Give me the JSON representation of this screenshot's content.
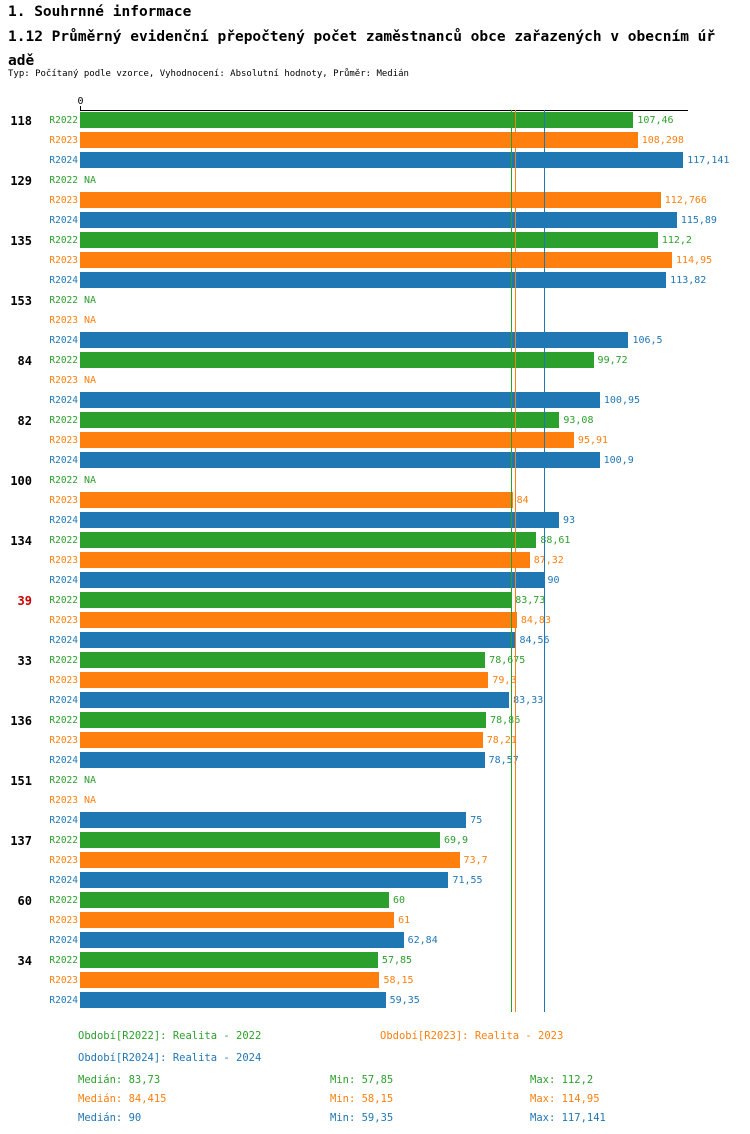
{
  "header": {
    "title": "1. Souhrnné informace",
    "subtitle": "1.12 Průměrný evidenční přepočtený počet zaměstnanců obce zařazených v obecním úřadě",
    "meta": "Typ: Počítaný podle vzorce, Vyhodnocení: Absolutní hodnoty, Průměr: Medián"
  },
  "chart_data": {
    "type": "bar",
    "orientation": "horizontal",
    "xlim": [
      0,
      122
    ],
    "axis": {
      "origin_label": "0"
    },
    "series": [
      "R2022",
      "R2023",
      "R2024"
    ],
    "colors": {
      "R2022": "#2ca02c",
      "R2023": "#ff7f0e",
      "R2024": "#1f77b4"
    },
    "highlight_color": "#cc0000",
    "groups": [
      {
        "label": "118",
        "values": [
          107.46,
          108.298,
          117.141
        ],
        "displays": [
          "107,46",
          "108,298",
          "117,141"
        ]
      },
      {
        "label": "129",
        "values": [
          null,
          112.766,
          115.89
        ],
        "displays": [
          "NA",
          "112,766",
          "115,89"
        ]
      },
      {
        "label": "135",
        "values": [
          112.2,
          114.95,
          113.82
        ],
        "displays": [
          "112,2",
          "114,95",
          "113,82"
        ]
      },
      {
        "label": "153",
        "values": [
          null,
          null,
          106.5
        ],
        "displays": [
          "NA",
          "NA",
          "106,5"
        ]
      },
      {
        "label": "84",
        "values": [
          99.72,
          null,
          100.95
        ],
        "displays": [
          "99,72",
          "NA",
          "100,95"
        ]
      },
      {
        "label": "82",
        "values": [
          93.08,
          95.91,
          100.9
        ],
        "displays": [
          "93,08",
          "95,91",
          "100,9"
        ]
      },
      {
        "label": "100",
        "values": [
          null,
          84,
          93
        ],
        "displays": [
          "NA",
          "84",
          "93"
        ]
      },
      {
        "label": "134",
        "values": [
          88.61,
          87.32,
          90
        ],
        "displays": [
          "88,61",
          "87,32",
          "90"
        ]
      },
      {
        "label": "39",
        "highlight": true,
        "values": [
          83.73,
          84.83,
          84.56
        ],
        "displays": [
          "83,73",
          "84,83",
          "84,56"
        ]
      },
      {
        "label": "33",
        "values": [
          78.675,
          79.3,
          83.33
        ],
        "displays": [
          "78,675",
          "79,3",
          "83,33"
        ]
      },
      {
        "label": "136",
        "values": [
          78.86,
          78.21,
          78.57
        ],
        "displays": [
          "78,86",
          "78,21",
          "78,57"
        ]
      },
      {
        "label": "151",
        "values": [
          null,
          null,
          75
        ],
        "displays": [
          "NA",
          "NA",
          "75"
        ]
      },
      {
        "label": "137",
        "values": [
          69.9,
          73.7,
          71.55
        ],
        "displays": [
          "69,9",
          "73,7",
          "71,55"
        ]
      },
      {
        "label": "60",
        "values": [
          60,
          61,
          62.84
        ],
        "displays": [
          "60",
          "61",
          "62,84"
        ]
      },
      {
        "label": "34",
        "values": [
          57.85,
          58.15,
          59.35
        ],
        "displays": [
          "57,85",
          "58,15",
          "59,35"
        ]
      }
    ],
    "reference_lines": [
      {
        "series": "R2022",
        "value": 83.73
      },
      {
        "series": "R2023",
        "value": 84.415
      },
      {
        "series": "R2024",
        "value": 90
      }
    ],
    "legend": [
      {
        "series": "R2022",
        "label": "Období[R2022]: Realita - 2022",
        "row": 0,
        "col": 0
      },
      {
        "series": "R2023",
        "label": "Období[R2023]: Realita - 2023",
        "row": 0,
        "col": 1
      },
      {
        "series": "R2024",
        "label": "Období[R2024]: Realita - 2024",
        "row": 1,
        "col": 0
      }
    ],
    "stats": [
      {
        "series": "R2022",
        "cells": [
          "Medián: 83,73",
          "Min: 57,85",
          "Max: 112,2"
        ]
      },
      {
        "series": "R2023",
        "cells": [
          "Medián: 84,415",
          "Min: 58,15",
          "Max: 114,95"
        ]
      },
      {
        "series": "R2024",
        "cells": [
          "Medián: 90",
          "Min: 59,35",
          "Max: 117,141"
        ]
      }
    ]
  }
}
